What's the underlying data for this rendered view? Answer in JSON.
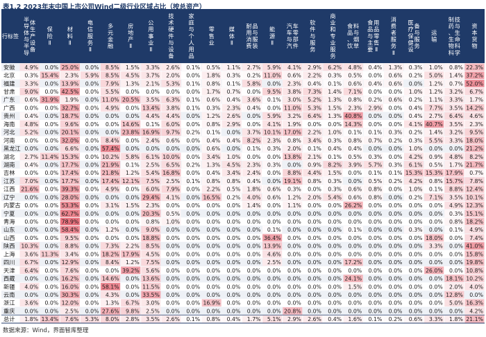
{
  "title": "表1.2 2023年末中国上市公司Wind二级行业区域占比（按总资产）",
  "source": "数据来源：Wind，界面智库整理",
  "colors": {
    "header_bg": "#1f3a68",
    "header_text": "#ffffff",
    "row_odd": "#eef1f6",
    "row_even": "#ffffff",
    "heat_low": "#ffffff",
    "heat_high": "#e8707c"
  },
  "chart_data": {
    "type": "heatmap",
    "unit": "%",
    "row_header": "行标签",
    "columns": [
      "半导体与半导体生产设备",
      "保险Ⅱ",
      "材料Ⅱ",
      "电信服务Ⅱ",
      "多元金融",
      "房地产Ⅱ",
      "公用事业Ⅱ",
      "技术硬件与设备",
      "家庭与个人用品",
      "零售业",
      "媒体Ⅱ",
      "耐用消费品与服装",
      "能源Ⅱ",
      "汽车与汽车零部件",
      "软件与服务",
      "商业和专业服务",
      "食品、饮料与烟草",
      "食品与主要用品零售Ⅱ",
      "消费者服务Ⅱ",
      "医疗保健设备与服务",
      "运输",
      "制药、生物科技与生命科学",
      "资本货物"
    ],
    "rows": [
      {
        "name": "安徽",
        "values": [
          4.9,
          0.0,
          25.0,
          0.0,
          8.5,
          1.5,
          3.3,
          2.6,
          0.1,
          0.5,
          1.1,
          2.7,
          5.9,
          4.1,
          2.9,
          6.2,
          4.8,
          0.4,
          1.3,
          0.3,
          1.0,
          0.8,
          22.3
        ]
      },
      {
        "name": "北京",
        "values": [
          0.3,
          15.4,
          2.3,
          5.9,
          8.5,
          4.5,
          3.7,
          2.0,
          0.0,
          1.8,
          0.3,
          0.2,
          11.0,
          0.6,
          2.2,
          0.3,
          0.5,
          0.0,
          0.6,
          0.2,
          5.0,
          1.4,
          37.2
        ]
      },
      {
        "name": "福建",
        "values": [
          3.3,
          0.0,
          13.9,
          0.0,
          7.9,
          1.3,
          2.1,
          5.3,
          0.1,
          0.8,
          0.1,
          5.8,
          0.0,
          2.3,
          0.4,
          0.1,
          0.6,
          0.4,
          0.6,
          0.0,
          1.2,
          0.7,
          52.0
        ]
      },
      {
        "name": "甘肃",
        "values": [
          9.0,
          0.0,
          42.5,
          0.0,
          5.5,
          0.0,
          0.0,
          0.0,
          0.0,
          1.7,
          0.7,
          0.0,
          9.5,
          3.8,
          7.3,
          1.4,
          7.1,
          0.0,
          0.0,
          1.0,
          1.2,
          3.2,
          6.7
        ]
      },
      {
        "name": "广东",
        "values": [
          0.6,
          31.9,
          1.9,
          0.0,
          11.0,
          20.5,
          3.5,
          6.3,
          0.1,
          0.6,
          0.4,
          3.6,
          0.1,
          3.0,
          5.2,
          1.3,
          0.8,
          0.2,
          0.6,
          0.2,
          1.1,
          3.3,
          1.7
        ]
      },
      {
        "name": "广西",
        "values": [
          0.0,
          0.0,
          32.7,
          0.0,
          4.9,
          0.0,
          13.4,
          3.8,
          0.1,
          0.3,
          2.3,
          0.4,
          0.0,
          11.0,
          5.3,
          1.5,
          2.3,
          2.9,
          0.0,
          0.4,
          7.7,
          3.5,
          14.2
        ]
      },
      {
        "name": "贵州",
        "values": [
          0.4,
          0.0,
          18.7,
          0.0,
          0.0,
          0.0,
          4.4,
          4.4,
          0.0,
          1.2,
          2.6,
          0.0,
          5.9,
          3.2,
          6.4,
          1.3,
          40.8,
          0.0,
          0.0,
          0.4,
          2.7,
          6.4,
          4.6
        ]
      },
      {
        "name": "海南",
        "values": [
          4.8,
          0.0,
          9.6,
          0.0,
          0.0,
          14.6,
          0.1,
          6.0,
          0.0,
          0.8,
          2.9,
          0.0,
          4.1,
          1.9,
          0.0,
          0.0,
          14.3,
          0.0,
          0.0,
          4.1,
          40.7,
          3.5,
          2.3
        ]
      },
      {
        "name": "河北",
        "values": [
          5.2,
          0.0,
          20.1,
          0.0,
          0.0,
          23.8,
          16.9,
          9.7,
          0.2,
          0.1,
          0.0,
          3.7,
          10.1,
          17.0,
          2.2,
          1.0,
          0.1,
          0.1,
          0.3,
          0.2,
          1.4,
          3.2,
          9.5
        ]
      },
      {
        "name": "河南",
        "values": [
          0.0,
          0.0,
          32.0,
          0.0,
          8.4,
          0.0,
          2.4,
          0.6,
          0.0,
          0.4,
          0.4,
          8.2,
          2.3,
          0.8,
          3.4,
          0.3,
          0.8,
          0.7,
          0.2,
          0.3,
          5.5,
          3.3,
          18.0
        ]
      },
      {
        "name": "黑龙江",
        "values": [
          0.0,
          0.0,
          6.6,
          0.0,
          57.4,
          0.0,
          0.0,
          0.0,
          0.0,
          0.6,
          0.0,
          0.1,
          0.3,
          2.0,
          0.1,
          0.4,
          0.4,
          0.0,
          0.0,
          1.0,
          0.0,
          0.0,
          21.2
        ]
      },
      {
        "name": "湖北",
        "values": [
          2.7,
          11.4,
          15.3,
          0.0,
          10.2,
          5.8,
          6.1,
          10.0,
          0.0,
          3.4,
          1.0,
          0.0,
          0.0,
          13.8,
          2.1,
          0.1,
          0.5,
          0.3,
          0.0,
          4.2,
          0.9,
          4.8,
          8.2
        ]
      },
      {
        "name": "湖南",
        "values": [
          0.4,
          0.0,
          17.7,
          0.0,
          21.9,
          0.1,
          2.5,
          6.5,
          0.2,
          1.3,
          4.5,
          2.3,
          0.3,
          0.0,
          0.9,
          8.2,
          3.9,
          5.7,
          0.3,
          6.1,
          0.5,
          1.7,
          21.7
        ]
      },
      {
        "name": "吉林",
        "values": [
          0.0,
          0.0,
          17.4,
          0.0,
          21.8,
          1.2,
          5.4,
          16.8,
          0.0,
          0.4,
          3.4,
          2.4,
          0.0,
          8.8,
          4.4,
          1.5,
          0.0,
          0.1,
          0.1,
          15.3,
          15.3,
          17.9,
          0.7
        ]
      },
      {
        "name": "江苏",
        "values": [
          7.0,
          0.0,
          17.7,
          0.0,
          17.4,
          12.1,
          7.5,
          2.5,
          0.1,
          0.8,
          0.8,
          0.4,
          0.0,
          19.1,
          0.8,
          0.3,
          0.0,
          0.5,
          0.2,
          4.2,
          0.8,
          15.7,
          7.8
        ]
      },
      {
        "name": "江西",
        "values": [
          21.6,
          0.0,
          39.3,
          0.0,
          4.9,
          0.0,
          6.0,
          7.9,
          0.0,
          2.2,
          0.5,
          1.8,
          0.6,
          0.3,
          0.0,
          0.3,
          0.6,
          0.8,
          0.0,
          1.0,
          0.1,
          8.8,
          12.4
        ]
      },
      {
        "name": "辽宁",
        "values": [
          0.0,
          0.0,
          28.0,
          0.0,
          0.0,
          0.0,
          29.4,
          4.1,
          0.0,
          16.5,
          0.2,
          4.0,
          0.6,
          1.2,
          2.0,
          5.4,
          0.6,
          0.8,
          0.0,
          0.2,
          7.1,
          3.5,
          10.1
        ]
      },
      {
        "name": "内蒙古",
        "values": [
          0.0,
          0.0,
          53.3,
          0.0,
          3.1,
          1.5,
          2.3,
          0.0,
          0.0,
          0.0,
          0.0,
          1.4,
          0.0,
          1.1,
          0.0,
          0.0,
          26.2,
          0.0,
          0.0,
          0.0,
          0.0,
          4.9,
          12.3
        ]
      },
      {
        "name": "宁夏",
        "values": [
          0.0,
          0.0,
          62.7,
          0.0,
          0.0,
          0.0,
          20.3,
          0.5,
          0.0,
          0.0,
          0.0,
          0.0,
          0.0,
          0.0,
          0.0,
          0.0,
          0.0,
          0.0,
          0.0,
          0.0,
          0.0,
          0.3,
          15.1
        ]
      },
      {
        "name": "青海",
        "values": [
          0.0,
          0.0,
          78.9,
          0.0,
          0.0,
          0.0,
          0.8,
          1.0,
          0.0,
          0.0,
          0.0,
          0.0,
          0.0,
          0.0,
          0.0,
          0.0,
          0.0,
          0.0,
          0.0,
          0.0,
          0.0,
          0.8,
          18.2
        ]
      },
      {
        "name": "山东",
        "values": [
          0.0,
          0.0,
          58.4,
          0.0,
          1.2,
          0.0,
          9.0,
          0.0,
          0.0,
          0.0,
          0.0,
          0.0,
          0.1,
          0.0,
          0.0,
          0.0,
          0.1,
          0.0,
          0.0,
          0.3,
          0.0,
          0.1,
          4.9
        ]
      },
      {
        "name": "山西",
        "values": [
          0.0,
          0.0,
          9.5,
          0.0,
          0.0,
          0.0,
          18.8,
          0.0,
          0.0,
          0.0,
          0.0,
          0.0,
          36.4,
          0.0,
          0.0,
          0.0,
          0.0,
          0.0,
          0.0,
          0.0,
          18.0,
          0.0,
          7.4
        ]
      },
      {
        "name": "陕西",
        "values": [
          10.3,
          0.0,
          8.8,
          0.0,
          7.3,
          2.2,
          8.5,
          0.0,
          0.0,
          0.0,
          0.0,
          0.0,
          13.9,
          0.0,
          0.0,
          0.0,
          0.0,
          0.0,
          0.0,
          0.0,
          3.3,
          0.0,
          41.0
        ]
      },
      {
        "name": "上海",
        "values": [
          3.6,
          11.3,
          3.4,
          0.0,
          18.2,
          17.9,
          4.5,
          0.0,
          0.0,
          0.0,
          0.0,
          0.0,
          4.6,
          0.0,
          0.0,
          0.0,
          0.0,
          0.0,
          0.0,
          0.0,
          0.0,
          0.0,
          15.8
        ]
      },
      {
        "name": "四川",
        "values": [
          6.7,
          0.0,
          12.9,
          0.0,
          8.4,
          1.2,
          7.5,
          0.0,
          0.0,
          0.0,
          0.0,
          0.0,
          2.5,
          0.0,
          0.0,
          0.0,
          17.2,
          0.0,
          0.0,
          0.0,
          0.0,
          0.0,
          19.8
        ]
      },
      {
        "name": "天津",
        "values": [
          6.4,
          0.0,
          7.6,
          0.0,
          0.0,
          39.2,
          5.6,
          0.0,
          0.0,
          0.0,
          0.0,
          0.0,
          0.0,
          0.0,
          0.0,
          0.0,
          0.0,
          0.0,
          0.0,
          0.0,
          26.0,
          0.0,
          10.8
        ]
      },
      {
        "name": "西藏",
        "values": [
          0.0,
          0.0,
          16.2,
          0.0,
          14.6,
          0.0,
          13.6,
          0.0,
          0.0,
          0.0,
          0.0,
          0.0,
          0.0,
          0.0,
          0.0,
          0.0,
          24.1,
          0.0,
          0.0,
          0.0,
          0.0,
          18.1,
          10.2
        ]
      },
      {
        "name": "新疆",
        "values": [
          4.0,
          0.0,
          16.0,
          0.0,
          58.1,
          0.0,
          11.5,
          0.0,
          0.0,
          0.0,
          0.0,
          0.0,
          0.0,
          0.0,
          0.0,
          0.0,
          1.5,
          0.0,
          0.0,
          0.0,
          0.0,
          2.0,
          4.0
        ]
      },
      {
        "name": "云南",
        "values": [
          0.0,
          0.0,
          30.3,
          0.0,
          4.3,
          0.0,
          33.5,
          0.0,
          0.0,
          0.0,
          0.0,
          0.0,
          0.0,
          0.0,
          0.0,
          0.0,
          0.0,
          0.0,
          0.0,
          0.0,
          0.0,
          12.8,
          0.0
        ]
      },
      {
        "name": "浙江",
        "values": [
          3.6,
          0.0,
          12.0,
          0.0,
          1.3,
          6.7,
          3.0,
          0.0,
          0.0,
          16.9,
          0.0,
          0.0,
          0.0,
          0.0,
          0.0,
          0.0,
          0.0,
          0.0,
          0.0,
          0.0,
          0.0,
          5.0,
          16.3
        ]
      },
      {
        "name": "重庆",
        "values": [
          0.0,
          0.0,
          2.5,
          0.0,
          27.6,
          9.8,
          2.5,
          0.0,
          0.0,
          0.0,
          0.0,
          0.0,
          0.0,
          20.8,
          0.0,
          0.0,
          0.0,
          0.0,
          0.0,
          0.0,
          0.0,
          0.0,
          4.2
        ]
      },
      {
        "name": "总计",
        "values": [
          1.8,
          13.4,
          7.6,
          5.3,
          8.0,
          2.8,
          3.5,
          2.6,
          0.1,
          0.8,
          0.4,
          1.7,
          5.1,
          2.9,
          2.6,
          0.4,
          1.6,
          0.1,
          0.2,
          0.6,
          3.3,
          1.8,
          21.1
        ]
      }
    ]
  }
}
